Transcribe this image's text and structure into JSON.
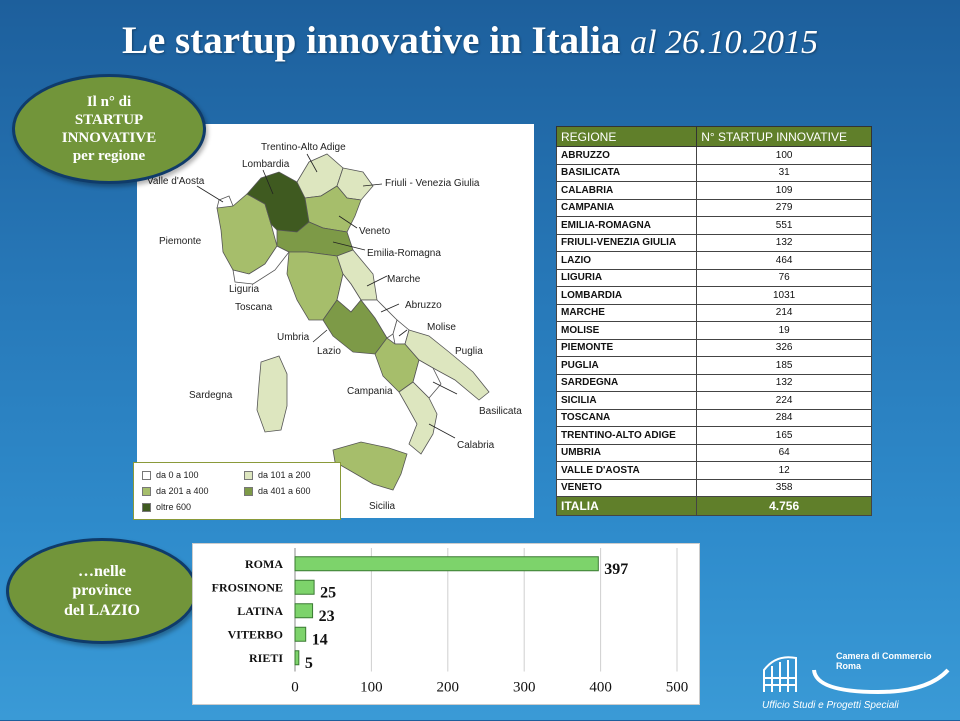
{
  "title": {
    "main": "Le startup innovative in Italia",
    "date": "al 26.10.2015"
  },
  "callouts": {
    "region": "Il n° di\nSTARTUP\nINNOVATIVE\nper regione",
    "provinces": "…nelle\nprovince\ndel LAZIO"
  },
  "map": {
    "labels": [
      "Trentino-Alto Adige",
      "Lombardia",
      "Valle d'Aosta",
      "Friuli - Venezia Giulia",
      "Veneto",
      "Piemonte",
      "Emilia-Romagna",
      "Liguria",
      "Marche",
      "Toscana",
      "Abruzzo",
      "Molise",
      "Umbria",
      "Lazio",
      "Puglia",
      "Sardegna",
      "Campania",
      "Basilicata",
      "Calabria",
      "Sicilia"
    ],
    "legend": [
      {
        "label": "da 0 a 100",
        "color": "#ffffff"
      },
      {
        "label": "da 101 a 200",
        "color": "#dde6bf"
      },
      {
        "label": "da 201 a 400",
        "color": "#a6be6b"
      },
      {
        "label": "da 401 a 600",
        "color": "#7d9a47"
      },
      {
        "label": "oltre 600",
        "color": "#3f5a20"
      }
    ]
  },
  "table": {
    "headers": [
      "REGIONE",
      "N° STARTUP INNOVATIVE"
    ],
    "rows": [
      [
        "ABRUZZO",
        "100"
      ],
      [
        "BASILICATA",
        "31"
      ],
      [
        "CALABRIA",
        "109"
      ],
      [
        "CAMPANIA",
        "279"
      ],
      [
        "EMILIA-ROMAGNA",
        "551"
      ],
      [
        "FRIULI-VENEZIA GIULIA",
        "132"
      ],
      [
        "LAZIO",
        "464"
      ],
      [
        "LIGURIA",
        "76"
      ],
      [
        "LOMBARDIA",
        "1031"
      ],
      [
        "MARCHE",
        "214"
      ],
      [
        "MOLISE",
        "19"
      ],
      [
        "PIEMONTE",
        "326"
      ],
      [
        "PUGLIA",
        "185"
      ],
      [
        "SARDEGNA",
        "132"
      ],
      [
        "SICILIA",
        "224"
      ],
      [
        "TOSCANA",
        "284"
      ],
      [
        "TRENTINO-ALTO ADIGE",
        "165"
      ],
      [
        "UMBRIA",
        "64"
      ],
      [
        "VALLE D'AOSTA",
        "12"
      ],
      [
        "VENETO",
        "358"
      ]
    ],
    "total": [
      "ITALIA",
      "4.756"
    ]
  },
  "chart_data": {
    "type": "bar",
    "orientation": "horizontal",
    "categories": [
      "ROMA",
      "FROSINONE",
      "LATINA",
      "VITERBO",
      "RIETI"
    ],
    "values": [
      397,
      25,
      23,
      14,
      5
    ],
    "xlim": [
      0,
      500
    ],
    "xticks": [
      "0",
      "100",
      "200",
      "300",
      "400",
      "500"
    ],
    "bar_color": "#7dd36b",
    "grid": true
  },
  "logo": {
    "line1": "Camera di Commercio",
    "line2": "Roma",
    "tagline": "Ufficio Studi e Progetti Speciali"
  }
}
